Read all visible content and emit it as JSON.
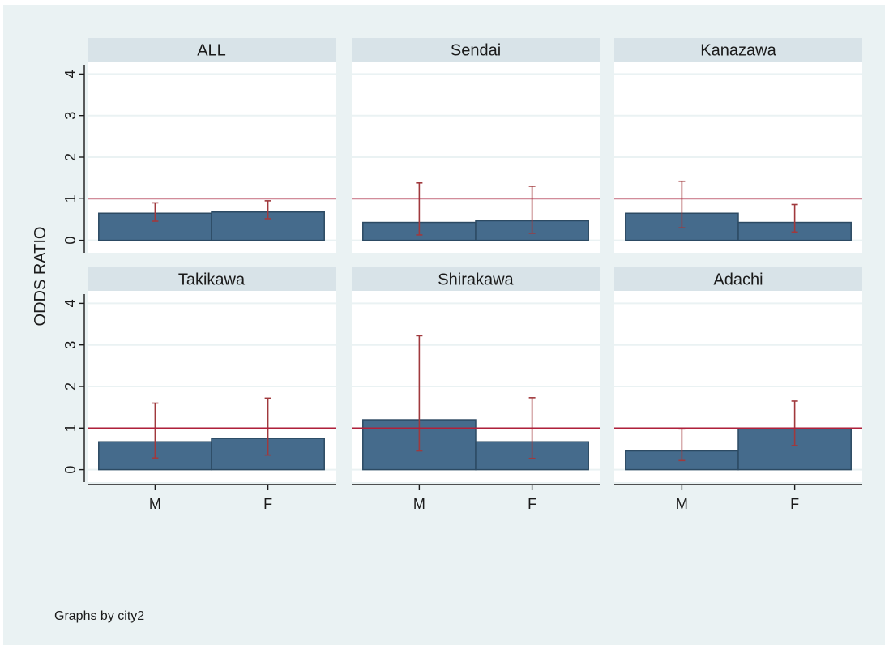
{
  "chart_data": {
    "type": "bar",
    "layout": "small-multiples 2x3",
    "categories": [
      "M",
      "F"
    ],
    "ylabel": "ODDS RATIO",
    "ylim": [
      -0.3,
      4.3
    ],
    "yticks": [
      0,
      1,
      2,
      3,
      4
    ],
    "reference_line": 1,
    "note": "Graphs by city2",
    "colors": {
      "bar": "#456b8c",
      "bar_outline": "#2c4a63",
      "error_bar": "#a0393d",
      "reference_line": "#b0203a",
      "strip": "#d8e3e8",
      "background": "#eaf2f3",
      "panel": "#ffffff",
      "grid": "#eaf2f3"
    },
    "panels": [
      {
        "title": "ALL",
        "values": [
          0.65,
          0.68
        ],
        "ci_low": [
          0.46,
          0.52
        ],
        "ci_high": [
          0.9,
          0.95
        ]
      },
      {
        "title": "Sendai",
        "values": [
          0.43,
          0.47
        ],
        "ci_low": [
          0.13,
          0.17
        ],
        "ci_high": [
          1.38,
          1.3
        ]
      },
      {
        "title": "Kanazawa",
        "values": [
          0.65,
          0.43
        ],
        "ci_low": [
          0.3,
          0.2
        ],
        "ci_high": [
          1.42,
          0.86
        ]
      },
      {
        "title": "Takikawa",
        "values": [
          0.67,
          0.75
        ],
        "ci_low": [
          0.28,
          0.35
        ],
        "ci_high": [
          1.6,
          1.72
        ]
      },
      {
        "title": "Shirakawa",
        "values": [
          1.2,
          0.67
        ],
        "ci_low": [
          0.45,
          0.27
        ],
        "ci_high": [
          3.22,
          1.73
        ]
      },
      {
        "title": "Adachi",
        "values": [
          0.45,
          0.98
        ],
        "ci_low": [
          0.22,
          0.58
        ],
        "ci_high": [
          0.98,
          1.65
        ]
      }
    ]
  }
}
